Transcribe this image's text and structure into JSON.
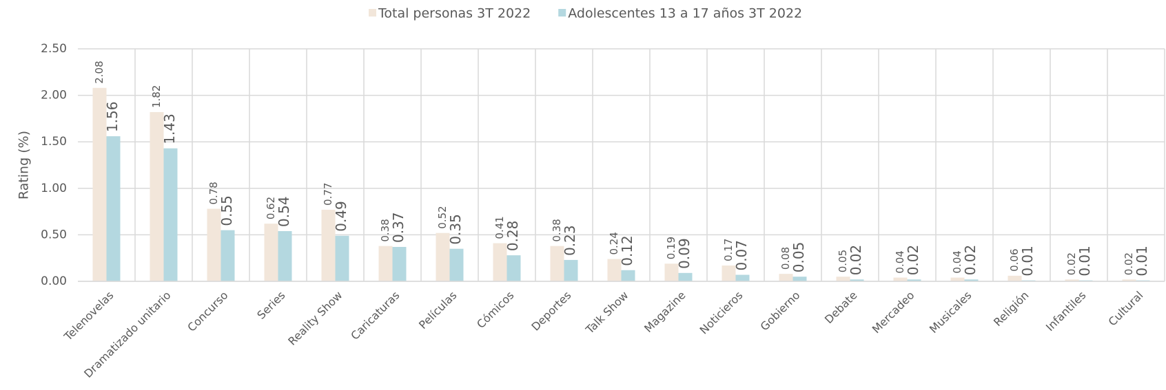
{
  "chart_data": {
    "type": "bar",
    "y_label": "Rating (%)",
    "categories": [
      "Telenovelas",
      "Dramatizado unitario",
      "Concurso",
      "Series",
      "Reality Show",
      "Caricaturas",
      "Películas",
      "Cómicos",
      "Deportes",
      "Talk Show",
      "Magazine",
      "Noticieros",
      "Gobierno",
      "Debate",
      "Mercadeo",
      "Musicales",
      "Religión",
      "Infantiles",
      "Cultural"
    ],
    "series": [
      {
        "name": "Total personas 3T 2022",
        "color": "#f2e6da",
        "values": [
          2.08,
          1.82,
          0.78,
          0.62,
          0.77,
          0.38,
          0.52,
          0.41,
          0.38,
          0.24,
          0.19,
          0.17,
          0.08,
          0.05,
          0.04,
          0.04,
          0.06,
          0.02,
          0.02
        ]
      },
      {
        "name": "Adolescentes 13 a 17 años 3T 2022",
        "color": "#b4d8e0",
        "values": [
          1.56,
          1.43,
          0.55,
          0.54,
          0.49,
          0.37,
          0.35,
          0.28,
          0.23,
          0.12,
          0.09,
          0.07,
          0.05,
          0.02,
          0.02,
          0.02,
          0.01,
          0.01,
          0.01
        ]
      }
    ],
    "ylim": [
      0,
      2.5
    ],
    "yticks": [
      {
        "value": 0,
        "label": "0.00"
      },
      {
        "value": 0.5,
        "label": "0.50"
      },
      {
        "value": 1,
        "label": "1.00"
      },
      {
        "value": 1.5,
        "label": "1.50"
      },
      {
        "value": 2,
        "label": "2.00"
      },
      {
        "value": 2.5,
        "label": "2.50"
      }
    ],
    "grid": true,
    "legend": "top"
  }
}
